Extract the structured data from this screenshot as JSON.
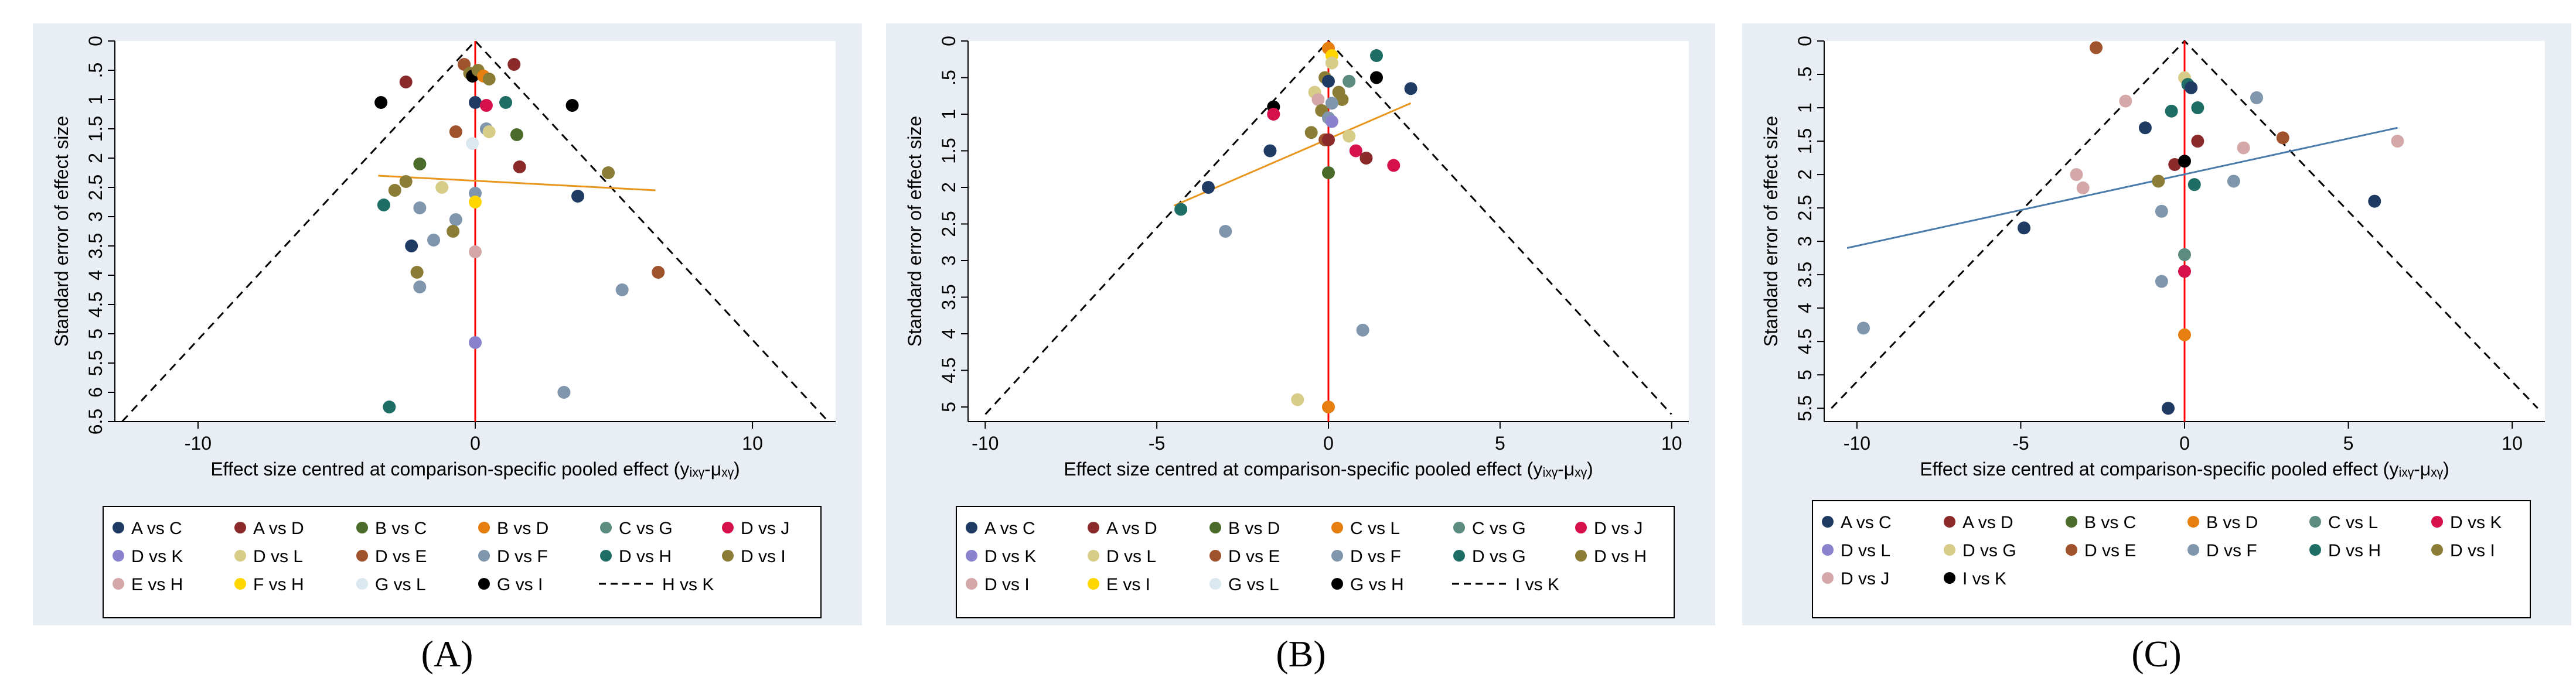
{
  "colors": {
    "panel_bg": "#e8eef3",
    "zero_line": "#ff0000",
    "fit_line_A": "#e8961e",
    "fit_line_B": "#e8961e",
    "fit_line_C": "#4a7bab",
    "funnel": "#000000"
  },
  "chart_data": [
    {
      "type": "scatter",
      "panel_label": "(A)",
      "xlabel": "Effect size centred at comparison-specific pooled effect (yᵢₓᵧ-μₓᵧ)",
      "ylabel": "Standard error of effect size",
      "xlim": [
        -13,
        13
      ],
      "ylim": [
        0,
        6.5
      ],
      "xticks": [
        -10,
        0,
        10
      ],
      "yticks": [
        "0",
        ".5",
        "1",
        "1.5",
        "2",
        "2.5",
        "3",
        "3.5",
        "4",
        "4.5",
        "5",
        "5.5",
        "6",
        "6.5"
      ],
      "funnel_max_se": 6.5,
      "funnel_slope": 1.96,
      "fit_line": {
        "x": [
          -3.5,
          6.5
        ],
        "y": [
          2.3,
          2.55
        ]
      },
      "legend": [
        {
          "label": "A vs C",
          "color": "#1f3b63",
          "kind": "dot"
        },
        {
          "label": "A vs D",
          "color": "#8b2a2a",
          "kind": "dot"
        },
        {
          "label": "B vs C",
          "color": "#4a6b2a",
          "kind": "dot"
        },
        {
          "label": "B vs D",
          "color": "#e67e10",
          "kind": "dot"
        },
        {
          "label": "C vs G",
          "color": "#5b8c7f",
          "kind": "dot"
        },
        {
          "label": "D vs J",
          "color": "#d6104a",
          "kind": "dot"
        },
        {
          "label": "D vs K",
          "color": "#8a82cc",
          "kind": "dot"
        },
        {
          "label": "D vs L",
          "color": "#d7cc88",
          "kind": "dot"
        },
        {
          "label": "D vs E",
          "color": "#a0522d",
          "kind": "dot"
        },
        {
          "label": "D vs F",
          "color": "#8096ad",
          "kind": "dot"
        },
        {
          "label": "D vs H",
          "color": "#1f6e65",
          "kind": "dot"
        },
        {
          "label": "D vs I",
          "color": "#8b7d35",
          "kind": "dot"
        },
        {
          "label": "E vs H",
          "color": "#d4a8a8",
          "kind": "dot"
        },
        {
          "label": "F vs H",
          "color": "#ffd700",
          "kind": "dot"
        },
        {
          "label": "G vs L",
          "color": "#dce8f0",
          "kind": "dot"
        },
        {
          "label": "G vs I",
          "color": "#000000",
          "kind": "dot"
        },
        {
          "label": "H vs K",
          "color": "#000000",
          "kind": "dash"
        }
      ],
      "points": [
        {
          "x": -0.4,
          "y": 0.4,
          "c": "#a0522d"
        },
        {
          "x": 1.4,
          "y": 0.4,
          "c": "#8b2a2a"
        },
        {
          "x": -0.2,
          "y": 0.55,
          "c": "#8b7d35"
        },
        {
          "x": -0.1,
          "y": 0.6,
          "c": "#000000"
        },
        {
          "x": 0.1,
          "y": 0.5,
          "c": "#8b7d35"
        },
        {
          "x": 0.3,
          "y": 0.6,
          "c": "#e67e10"
        },
        {
          "x": 0.5,
          "y": 0.65,
          "c": "#8b7d35"
        },
        {
          "x": -2.5,
          "y": 0.7,
          "c": "#8b2a2a"
        },
        {
          "x": 0.0,
          "y": 1.05,
          "c": "#1f3b63"
        },
        {
          "x": 0.4,
          "y": 1.1,
          "c": "#d6104a"
        },
        {
          "x": 1.1,
          "y": 1.05,
          "c": "#1f6e65"
        },
        {
          "x": -3.4,
          "y": 1.05,
          "c": "#000000"
        },
        {
          "x": 3.5,
          "y": 1.1,
          "c": "#000000"
        },
        {
          "x": -0.7,
          "y": 1.55,
          "c": "#a0522d"
        },
        {
          "x": 0.4,
          "y": 1.5,
          "c": "#8096ad"
        },
        {
          "x": 0.5,
          "y": 1.55,
          "c": "#d7cc88"
        },
        {
          "x": 1.5,
          "y": 1.6,
          "c": "#4a6b2a"
        },
        {
          "x": -0.1,
          "y": 1.75,
          "c": "#dce8f0"
        },
        {
          "x": 1.6,
          "y": 2.15,
          "c": "#8b2a2a"
        },
        {
          "x": -2.0,
          "y": 2.1,
          "c": "#4a6b2a"
        },
        {
          "x": 4.8,
          "y": 2.25,
          "c": "#8b7d35"
        },
        {
          "x": -2.5,
          "y": 2.4,
          "c": "#8b7d35"
        },
        {
          "x": -2.9,
          "y": 2.55,
          "c": "#8b7d35"
        },
        {
          "x": -1.2,
          "y": 2.5,
          "c": "#d7cc88"
        },
        {
          "x": 0.0,
          "y": 2.6,
          "c": "#8096ad"
        },
        {
          "x": 0.0,
          "y": 2.75,
          "c": "#ffd700"
        },
        {
          "x": 3.7,
          "y": 2.65,
          "c": "#1f3b63"
        },
        {
          "x": -3.3,
          "y": 2.8,
          "c": "#1f6e65"
        },
        {
          "x": -2.0,
          "y": 2.85,
          "c": "#8096ad"
        },
        {
          "x": -0.7,
          "y": 3.05,
          "c": "#8096ad"
        },
        {
          "x": -0.8,
          "y": 3.25,
          "c": "#8b7d35"
        },
        {
          "x": -1.5,
          "y": 3.4,
          "c": "#8096ad"
        },
        {
          "x": -2.3,
          "y": 3.5,
          "c": "#1f3b63"
        },
        {
          "x": 0.0,
          "y": 3.6,
          "c": "#d4a8a8"
        },
        {
          "x": -2.1,
          "y": 3.95,
          "c": "#8b7d35"
        },
        {
          "x": 6.6,
          "y": 3.95,
          "c": "#a0522d"
        },
        {
          "x": -2.0,
          "y": 4.2,
          "c": "#8096ad"
        },
        {
          "x": 5.3,
          "y": 4.25,
          "c": "#8096ad"
        },
        {
          "x": 0.0,
          "y": 5.15,
          "c": "#8a82cc"
        },
        {
          "x": 3.2,
          "y": 6.0,
          "c": "#8096ad"
        },
        {
          "x": -3.1,
          "y": 6.25,
          "c": "#1f6e65"
        }
      ]
    },
    {
      "type": "scatter",
      "panel_label": "(B)",
      "xlabel": "Effect size centred at comparison-specific pooled effect (yᵢₓᵧ-μₓᵧ)",
      "ylabel": "Standard error of effect size",
      "xlim": [
        -10.5,
        10.5
      ],
      "ylim": [
        0,
        5.2
      ],
      "xticks": [
        -10,
        -5,
        0,
        5,
        10
      ],
      "yticks": [
        "0",
        ".5",
        "1",
        "1.5",
        "2",
        "2.5",
        "3",
        "3.5",
        "4",
        "4.5",
        "5"
      ],
      "funnel_max_se": 5.1,
      "funnel_slope": 1.96,
      "fit_line": {
        "x": [
          -4.5,
          2.4
        ],
        "y": [
          2.25,
          0.85
        ]
      },
      "legend": [
        {
          "label": "A vs C",
          "color": "#1f3b63",
          "kind": "dot"
        },
        {
          "label": "A vs D",
          "color": "#8b2a2a",
          "kind": "dot"
        },
        {
          "label": "B vs D",
          "color": "#4a6b2a",
          "kind": "dot"
        },
        {
          "label": "C vs L",
          "color": "#e67e10",
          "kind": "dot"
        },
        {
          "label": "C vs G",
          "color": "#5b8c7f",
          "kind": "dot"
        },
        {
          "label": "D vs J",
          "color": "#d6104a",
          "kind": "dot"
        },
        {
          "label": "D vs K",
          "color": "#8a82cc",
          "kind": "dot"
        },
        {
          "label": "D vs L",
          "color": "#d7cc88",
          "kind": "dot"
        },
        {
          "label": "D vs E",
          "color": "#a0522d",
          "kind": "dot"
        },
        {
          "label": "D vs F",
          "color": "#8096ad",
          "kind": "dot"
        },
        {
          "label": "D vs G",
          "color": "#1f6e65",
          "kind": "dot"
        },
        {
          "label": "D vs H",
          "color": "#8b7d35",
          "kind": "dot"
        },
        {
          "label": "D vs I",
          "color": "#d4a8a8",
          "kind": "dot"
        },
        {
          "label": "E vs I",
          "color": "#ffd700",
          "kind": "dot"
        },
        {
          "label": "G vs L",
          "color": "#dce8f0",
          "kind": "dot"
        },
        {
          "label": "G vs H",
          "color": "#000000",
          "kind": "dot"
        },
        {
          "label": "I vs K",
          "color": "#000000",
          "kind": "dash"
        }
      ],
      "points": [
        {
          "x": 0.0,
          "y": 0.1,
          "c": "#e67e10"
        },
        {
          "x": 0.1,
          "y": 0.2,
          "c": "#ffd700"
        },
        {
          "x": 1.4,
          "y": 0.2,
          "c": "#1f6e65"
        },
        {
          "x": 0.1,
          "y": 0.3,
          "c": "#d7cc88"
        },
        {
          "x": 1.4,
          "y": 0.5,
          "c": "#000000"
        },
        {
          "x": -0.1,
          "y": 0.5,
          "c": "#8b7d35"
        },
        {
          "x": 0.0,
          "y": 0.55,
          "c": "#1f3b63"
        },
        {
          "x": 0.6,
          "y": 0.55,
          "c": "#5b8c7f"
        },
        {
          "x": 2.4,
          "y": 0.65,
          "c": "#1f3b63"
        },
        {
          "x": -0.4,
          "y": 0.7,
          "c": "#d7cc88"
        },
        {
          "x": 0.3,
          "y": 0.7,
          "c": "#8b7d35"
        },
        {
          "x": -0.3,
          "y": 0.8,
          "c": "#d4a8a8"
        },
        {
          "x": 0.4,
          "y": 0.8,
          "c": "#8b7d35"
        },
        {
          "x": 0.1,
          "y": 0.85,
          "c": "#8096ad"
        },
        {
          "x": -1.6,
          "y": 0.9,
          "c": "#000000"
        },
        {
          "x": -0.2,
          "y": 0.95,
          "c": "#8b7d35"
        },
        {
          "x": -1.6,
          "y": 1.0,
          "c": "#d6104a"
        },
        {
          "x": 0.0,
          "y": 1.05,
          "c": "#8096ad"
        },
        {
          "x": 0.1,
          "y": 1.1,
          "c": "#8a82cc"
        },
        {
          "x": -0.5,
          "y": 1.25,
          "c": "#8b7d35"
        },
        {
          "x": 0.6,
          "y": 1.3,
          "c": "#d7cc88"
        },
        {
          "x": -0.1,
          "y": 1.35,
          "c": "#a0522d"
        },
        {
          "x": 0.0,
          "y": 1.35,
          "c": "#8b2a2a"
        },
        {
          "x": 0.8,
          "y": 1.5,
          "c": "#d6104a"
        },
        {
          "x": -1.7,
          "y": 1.5,
          "c": "#1f3b63"
        },
        {
          "x": 1.1,
          "y": 1.6,
          "c": "#8b2a2a"
        },
        {
          "x": 1.9,
          "y": 1.7,
          "c": "#d6104a"
        },
        {
          "x": 0.0,
          "y": 1.8,
          "c": "#4a6b2a"
        },
        {
          "x": -3.5,
          "y": 2.0,
          "c": "#1f3b63"
        },
        {
          "x": -4.3,
          "y": 2.3,
          "c": "#1f6e65"
        },
        {
          "x": -3.0,
          "y": 2.6,
          "c": "#8096ad"
        },
        {
          "x": 1.0,
          "y": 3.95,
          "c": "#8096ad"
        },
        {
          "x": -0.9,
          "y": 4.9,
          "c": "#d7cc88"
        },
        {
          "x": 0.0,
          "y": 5.0,
          "c": "#e67e10"
        }
      ]
    },
    {
      "type": "scatter",
      "panel_label": "(C)",
      "xlabel": "Effect size centred at comparison-specific pooled effect (yᵢₓᵧ-μₓᵧ)",
      "ylabel": "Standard error of effect size",
      "xlim": [
        -11,
        11
      ],
      "ylim": [
        0,
        5.7
      ],
      "xticks": [
        -10,
        -5,
        0,
        5,
        10
      ],
      "yticks": [
        "0",
        ".5",
        "1",
        "1.5",
        "2",
        "2.5",
        "3",
        "3.5",
        "4",
        "4.5",
        "5",
        "5.5"
      ],
      "funnel_max_se": 5.5,
      "funnel_slope": 1.96,
      "fit_line": {
        "x": [
          -10.3,
          6.5
        ],
        "y": [
          3.1,
          1.3
        ]
      },
      "legend": [
        {
          "label": "A vs C",
          "color": "#1f3b63",
          "kind": "dot"
        },
        {
          "label": "A vs D",
          "color": "#8b2a2a",
          "kind": "dot"
        },
        {
          "label": "B vs C",
          "color": "#4a6b2a",
          "kind": "dot"
        },
        {
          "label": "B vs D",
          "color": "#e67e10",
          "kind": "dot"
        },
        {
          "label": "C vs L",
          "color": "#5b8c7f",
          "kind": "dot"
        },
        {
          "label": "D vs K",
          "color": "#d6104a",
          "kind": "dot"
        },
        {
          "label": "D vs L",
          "color": "#8a82cc",
          "kind": "dot"
        },
        {
          "label": "D vs G",
          "color": "#d7cc88",
          "kind": "dot"
        },
        {
          "label": "D vs E",
          "color": "#a0522d",
          "kind": "dot"
        },
        {
          "label": "D vs F",
          "color": "#8096ad",
          "kind": "dot"
        },
        {
          "label": "D vs H",
          "color": "#1f6e65",
          "kind": "dot"
        },
        {
          "label": "D vs I",
          "color": "#8b7d35",
          "kind": "dot"
        },
        {
          "label": "D vs J",
          "color": "#d4a8a8",
          "kind": "dot"
        },
        {
          "label": "I vs K",
          "color": "#000000",
          "kind": "dot"
        }
      ],
      "points": [
        {
          "x": -2.7,
          "y": 0.1,
          "c": "#a0522d"
        },
        {
          "x": 0.0,
          "y": 0.55,
          "c": "#d7cc88"
        },
        {
          "x": 0.1,
          "y": 0.65,
          "c": "#1f6e65"
        },
        {
          "x": 0.2,
          "y": 0.7,
          "c": "#1f3b63"
        },
        {
          "x": 2.2,
          "y": 0.85,
          "c": "#8096ad"
        },
        {
          "x": -1.8,
          "y": 0.9,
          "c": "#d4a8a8"
        },
        {
          "x": -0.4,
          "y": 1.05,
          "c": "#1f6e65"
        },
        {
          "x": 0.4,
          "y": 1.0,
          "c": "#1f6e65"
        },
        {
          "x": -1.2,
          "y": 1.3,
          "c": "#1f3b63"
        },
        {
          "x": 3.0,
          "y": 1.45,
          "c": "#a0522d"
        },
        {
          "x": 0.4,
          "y": 1.5,
          "c": "#8b2a2a"
        },
        {
          "x": 6.5,
          "y": 1.5,
          "c": "#d4a8a8"
        },
        {
          "x": 1.8,
          "y": 1.6,
          "c": "#d4a8a8"
        },
        {
          "x": -0.3,
          "y": 1.85,
          "c": "#8b2a2a"
        },
        {
          "x": 0.0,
          "y": 1.8,
          "c": "#000000"
        },
        {
          "x": -3.3,
          "y": 2.0,
          "c": "#d4a8a8"
        },
        {
          "x": -0.8,
          "y": 2.1,
          "c": "#8b7d35"
        },
        {
          "x": 1.5,
          "y": 2.1,
          "c": "#8096ad"
        },
        {
          "x": 0.3,
          "y": 2.15,
          "c": "#1f6e65"
        },
        {
          "x": -3.1,
          "y": 2.2,
          "c": "#d4a8a8"
        },
        {
          "x": 5.8,
          "y": 2.4,
          "c": "#1f3b63"
        },
        {
          "x": -0.7,
          "y": 2.55,
          "c": "#8096ad"
        },
        {
          "x": -4.9,
          "y": 2.8,
          "c": "#1f3b63"
        },
        {
          "x": 0.0,
          "y": 3.2,
          "c": "#5b8c7f"
        },
        {
          "x": 0.0,
          "y": 3.45,
          "c": "#d6104a"
        },
        {
          "x": -0.7,
          "y": 3.6,
          "c": "#8096ad"
        },
        {
          "x": -9.8,
          "y": 4.3,
          "c": "#8096ad"
        },
        {
          "x": 0.0,
          "y": 4.4,
          "c": "#e67e10"
        },
        {
          "x": -0.5,
          "y": 5.5,
          "c": "#1f3b63"
        }
      ]
    }
  ]
}
